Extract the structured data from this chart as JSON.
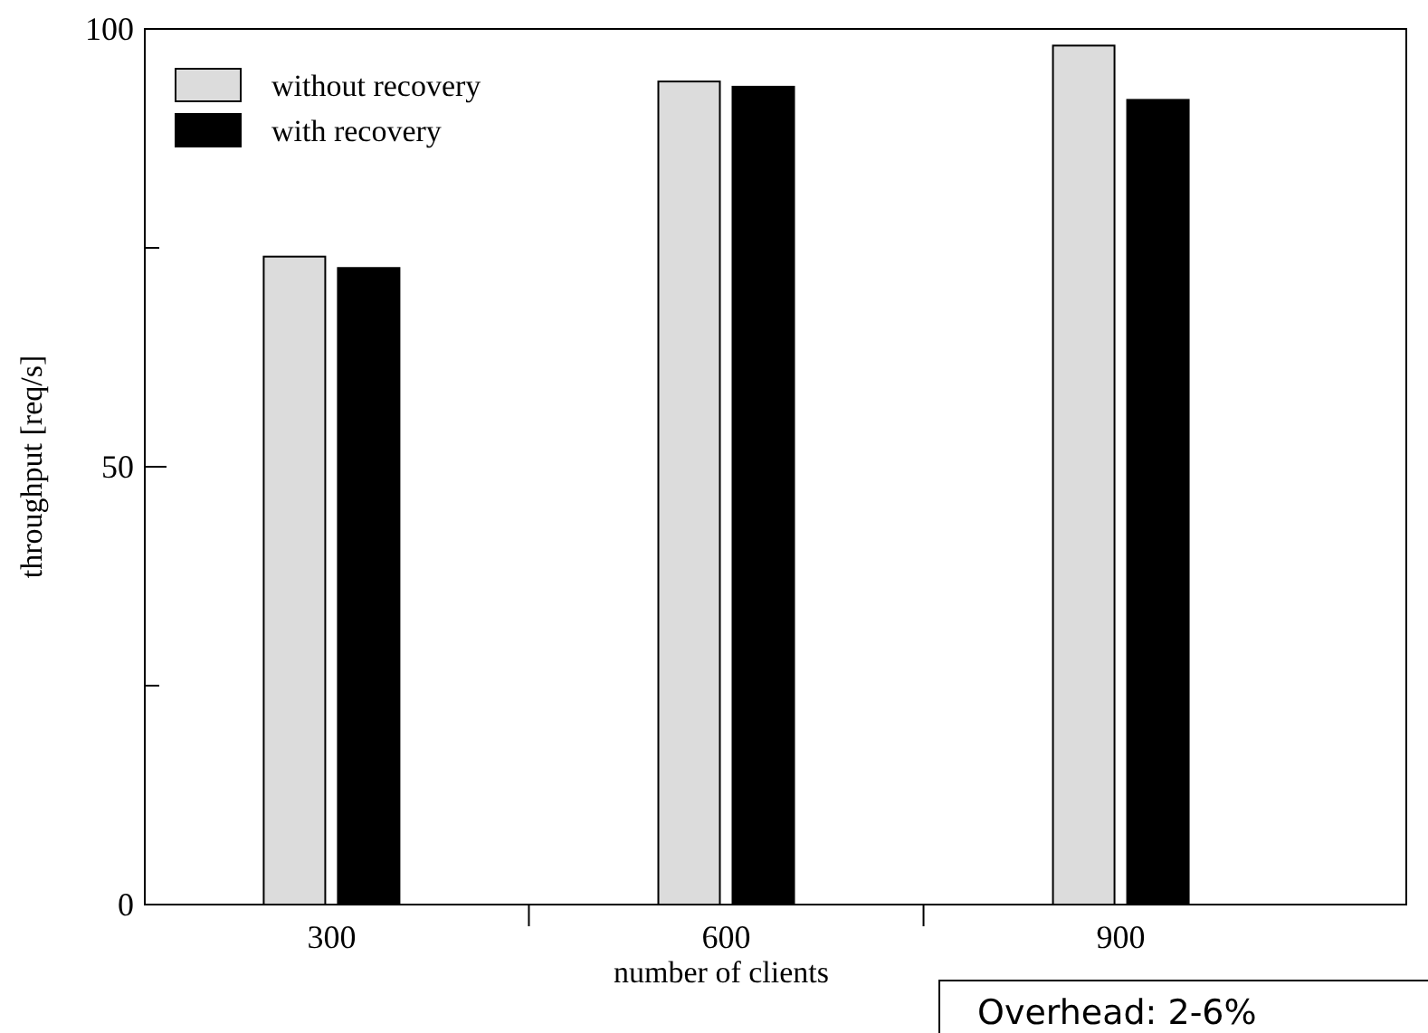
{
  "chart_data": {
    "type": "bar",
    "xlabel": "number of clients",
    "ylabel": "throughput [req/s]",
    "x": [
      300,
      600,
      900
    ],
    "xlim": [
      158,
      1117
    ],
    "xticks": [
      300,
      {
        "value": 450,
        "label": null
      },
      600,
      {
        "value": 750,
        "label": null
      },
      900
    ],
    "ylim": [
      0,
      100
    ],
    "yticks": [
      0,
      {
        "value": 25,
        "label": null
      },
      50,
      {
        "value": 75,
        "label": null
      },
      100
    ],
    "series": [
      {
        "name": "without recovery",
        "color": "#dcdcdc",
        "values": [
          74.0,
          94.0,
          98.1
        ]
      },
      {
        "name": "with recovery",
        "color": "#000000",
        "values": [
          72.7,
          93.4,
          91.9
        ]
      }
    ],
    "legend": "top left",
    "grid": false,
    "annotations": [
      "Overhead:  2-6%"
    ]
  }
}
